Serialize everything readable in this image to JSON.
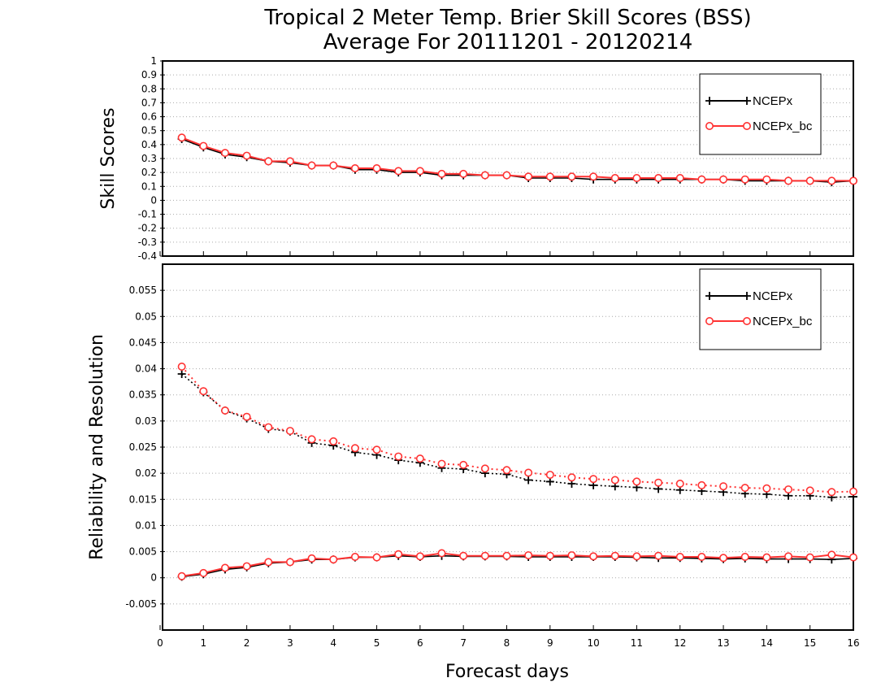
{
  "chart_data": {
    "title_line1": "Tropical 2 Meter Temp. Brier Skill Scores (BSS)",
    "title_line2": "Average For 20111201 - 20120214",
    "xlabel": "Forecast days",
    "x_ticks": [
      "0",
      "1",
      "2",
      "3",
      "4",
      "5",
      "6",
      "7",
      "8",
      "9",
      "10",
      "11",
      "12",
      "13",
      "14",
      "15",
      "16"
    ],
    "xlim": [
      0,
      16
    ],
    "colors": {
      "NCEPx": "#000000",
      "NCEPx_bc": "#ff3333"
    },
    "panels": [
      {
        "type": "line",
        "ylabel": "Skill Scores",
        "ylim": [
          -0.4,
          1
        ],
        "y_ticks": [
          "-0.4",
          "-0.3",
          "-0.2",
          "-0.1",
          "0",
          "0.1",
          "0.2",
          "0.3",
          "0.4",
          "0.5",
          "0.6",
          "0.7",
          "0.8",
          "0.9",
          "1"
        ],
        "legend": [
          "NCEPx",
          "NCEPx_bc"
        ],
        "legend_position": "top-right",
        "series": [
          {
            "name": "NCEPx",
            "style": "solid",
            "marker": "plus",
            "x": [
              0.5,
              1,
              1.5,
              2,
              2.5,
              3,
              3.5,
              4,
              4.5,
              5,
              5.5,
              6,
              6.5,
              7,
              7.5,
              8,
              8.5,
              9,
              9.5,
              10,
              10.5,
              11,
              11.5,
              12,
              12.5,
              13,
              13.5,
              14,
              14.5,
              15,
              15.5,
              16
            ],
            "y": [
              0.44,
              0.38,
              0.33,
              0.31,
              0.28,
              0.27,
              0.25,
              0.25,
              0.22,
              0.22,
              0.2,
              0.2,
              0.18,
              0.18,
              0.18,
              0.18,
              0.16,
              0.16,
              0.16,
              0.15,
              0.15,
              0.15,
              0.15,
              0.15,
              0.15,
              0.15,
              0.14,
              0.14,
              0.14,
              0.14,
              0.13,
              0.14
            ]
          },
          {
            "name": "NCEPx_bc",
            "style": "solid",
            "marker": "circle",
            "x": [
              0.5,
              1,
              1.5,
              2,
              2.5,
              3,
              3.5,
              4,
              4.5,
              5,
              5.5,
              6,
              6.5,
              7,
              7.5,
              8,
              8.5,
              9,
              9.5,
              10,
              10.5,
              11,
              11.5,
              12,
              12.5,
              13,
              13.5,
              14,
              14.5,
              15,
              15.5,
              16
            ],
            "y": [
              0.45,
              0.39,
              0.34,
              0.32,
              0.28,
              0.28,
              0.25,
              0.25,
              0.23,
              0.23,
              0.21,
              0.21,
              0.19,
              0.19,
              0.18,
              0.18,
              0.17,
              0.17,
              0.17,
              0.17,
              0.16,
              0.16,
              0.16,
              0.16,
              0.15,
              0.15,
              0.15,
              0.15,
              0.14,
              0.14,
              0.14,
              0.14
            ]
          }
        ]
      },
      {
        "type": "line",
        "ylabel": "Reliability and Resolution",
        "ylim": [
          -0.01,
          0.06
        ],
        "y_ticks": [
          "-0.005",
          "0",
          "0.005",
          "0.01",
          "0.015",
          "0.02",
          "0.025",
          "0.03",
          "0.035",
          "0.04",
          "0.045",
          "0.05",
          "0.055"
        ],
        "legend": [
          "NCEPx",
          "NCEPx_bc"
        ],
        "legend_position": "top-right",
        "series": [
          {
            "name": "NCEPx",
            "style": "dotted",
            "marker": "plus",
            "x": [
              0.5,
              1,
              1.5,
              2,
              2.5,
              3,
              3.5,
              4,
              4.5,
              5,
              5.5,
              6,
              6.5,
              7,
              7.5,
              8,
              8.5,
              9,
              9.5,
              10,
              10.5,
              11,
              11.5,
              12,
              12.5,
              13,
              13.5,
              14,
              14.5,
              15,
              15.5,
              16
            ],
            "y": [
              0.039,
              0.0355,
              0.032,
              0.0305,
              0.0285,
              0.028,
              0.0258,
              0.0253,
              0.024,
              0.0235,
              0.0225,
              0.022,
              0.021,
              0.0208,
              0.02,
              0.0198,
              0.0187,
              0.0184,
              0.018,
              0.0177,
              0.0175,
              0.0173,
              0.017,
              0.0168,
              0.0166,
              0.0164,
              0.0161,
              0.016,
              0.0157,
              0.0157,
              0.0154,
              0.0155
            ]
          },
          {
            "name": "NCEPx_bc",
            "style": "dotted",
            "marker": "circle",
            "x": [
              0.5,
              1,
              1.5,
              2,
              2.5,
              3,
              3.5,
              4,
              4.5,
              5,
              5.5,
              6,
              6.5,
              7,
              7.5,
              8,
              8.5,
              9,
              9.5,
              10,
              10.5,
              11,
              11.5,
              12,
              12.5,
              13,
              13.5,
              14,
              14.5,
              15,
              15.5,
              16
            ],
            "y": [
              0.0404,
              0.0357,
              0.032,
              0.0308,
              0.0288,
              0.0281,
              0.0265,
              0.0261,
              0.0248,
              0.0245,
              0.0232,
              0.0228,
              0.0218,
              0.0216,
              0.0209,
              0.0206,
              0.0201,
              0.0197,
              0.0192,
              0.0189,
              0.0187,
              0.0184,
              0.0182,
              0.018,
              0.0177,
              0.0175,
              0.0172,
              0.0171,
              0.0169,
              0.0167,
              0.0164,
              0.0165
            ]
          },
          {
            "name": "NCEPx",
            "style": "solid",
            "marker": "plus",
            "x": [
              0.5,
              1,
              1.5,
              2,
              2.5,
              3,
              3.5,
              4,
              4.5,
              5,
              5.5,
              6,
              6.5,
              7,
              7.5,
              8,
              8.5,
              9,
              9.5,
              10,
              10.5,
              11,
              11.5,
              12,
              12.5,
              13,
              13.5,
              14,
              14.5,
              15,
              15.5,
              16
            ],
            "y": [
              0.0002,
              0.0007,
              0.0016,
              0.002,
              0.0028,
              0.003,
              0.0035,
              0.0035,
              0.0039,
              0.0039,
              0.0042,
              0.004,
              0.0042,
              0.0041,
              0.0041,
              0.0041,
              0.004,
              0.004,
              0.004,
              0.004,
              0.004,
              0.0039,
              0.0038,
              0.0038,
              0.0037,
              0.0036,
              0.0037,
              0.0036,
              0.0036,
              0.0036,
              0.0035,
              0.0037
            ]
          },
          {
            "name": "NCEPx_bc",
            "style": "solid",
            "marker": "circle",
            "x": [
              0.5,
              1,
              1.5,
              2,
              2.5,
              3,
              3.5,
              4,
              4.5,
              5,
              5.5,
              6,
              6.5,
              7,
              7.5,
              8,
              8.5,
              9,
              9.5,
              10,
              10.5,
              11,
              11.5,
              12,
              12.5,
              13,
              13.5,
              14,
              14.5,
              15,
              15.5,
              16
            ],
            "y": [
              0.0003,
              0.0009,
              0.0019,
              0.0022,
              0.003,
              0.003,
              0.0037,
              0.0035,
              0.004,
              0.0039,
              0.0045,
              0.0041,
              0.0047,
              0.0042,
              0.0042,
              0.0042,
              0.0043,
              0.0042,
              0.0043,
              0.0041,
              0.0042,
              0.0041,
              0.0042,
              0.004,
              0.004,
              0.0038,
              0.004,
              0.0039,
              0.0041,
              0.0039,
              0.0044,
              0.0039
            ]
          }
        ]
      }
    ]
  }
}
